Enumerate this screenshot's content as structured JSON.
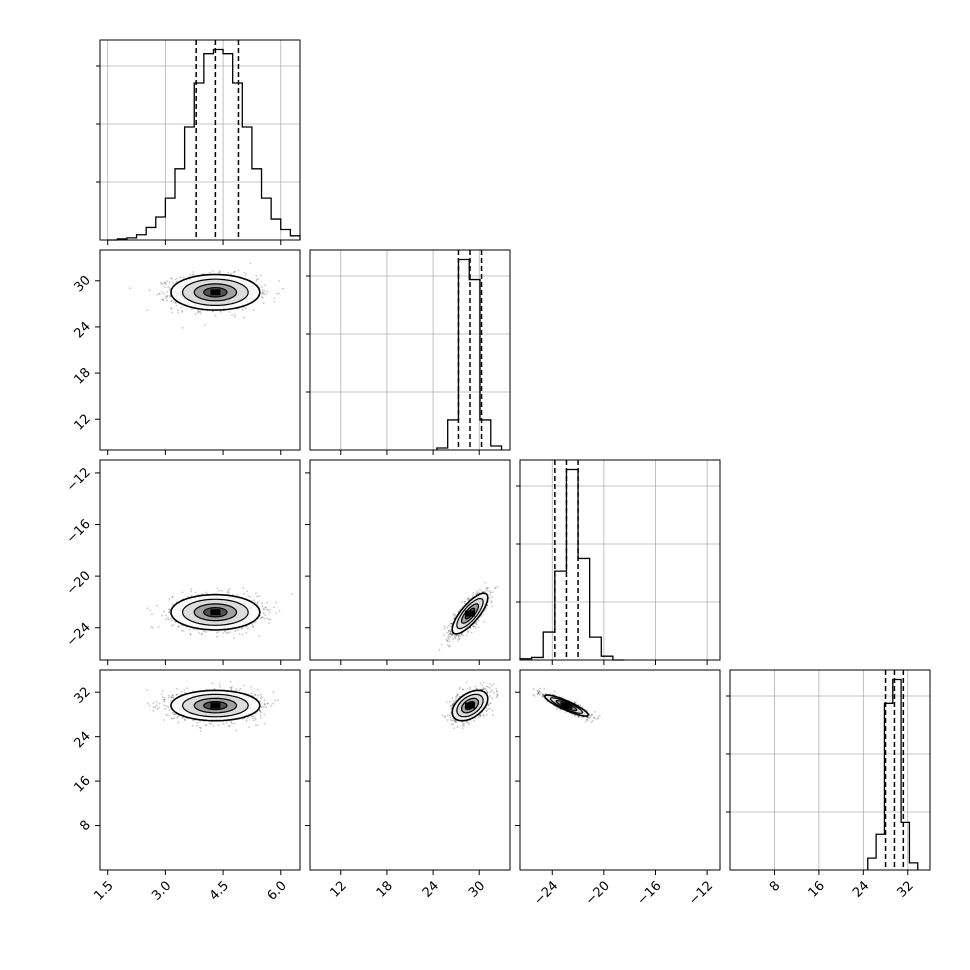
{
  "chart_data": {
    "type": "corner",
    "grid": true,
    "params": [
      {
        "range": [
          1.3,
          6.5
        ],
        "ticks": [
          "1.5",
          "3.0",
          "4.5",
          "6.0"
        ],
        "tick_values": [
          1.5,
          3.0,
          4.5,
          6.0
        ],
        "quantiles": [
          3.8,
          4.3,
          4.9
        ],
        "hist": {
          "edges_start": 1.5,
          "edge_step": 0.25,
          "counts": [
            0,
            1,
            2,
            5,
            12,
            22,
            40,
            68,
            108,
            150,
            178,
            182,
            178,
            150,
            108,
            68,
            40,
            20,
            10,
            4,
            1
          ]
        }
      },
      {
        "range": [
          8,
          34
        ],
        "ticks": [
          "12",
          "18",
          "24",
          "30"
        ],
        "tick_values": [
          12,
          18,
          24,
          30
        ],
        "quantiles": [
          27.3,
          28.8,
          30.3
        ],
        "hist": {
          "edges_start": 24.5,
          "edge_step": 1.4,
          "counts": [
            2,
            30,
            190,
            170,
            30,
            4
          ]
        }
      },
      {
        "range": [
          -26.5,
          -11
        ],
        "ticks": [
          "−24",
          "−20",
          "−16",
          "−12"
        ],
        "tick_values": [
          -24,
          -20,
          -16,
          -12
        ],
        "quantiles": [
          -23.8,
          -22.9,
          -22.0
        ],
        "hist": {
          "edges_start": -26.5,
          "edge_step": 0.9,
          "counts": [
            1,
            2,
            22,
            70,
            150,
            80,
            18,
            3,
            0
          ]
        }
      },
      {
        "range": [
          0,
          36
        ],
        "ticks": [
          "8",
          "16",
          "24",
          "32"
        ],
        "tick_values": [
          8,
          16,
          24,
          32
        ],
        "quantiles": [
          28.0,
          29.6,
          31.2
        ],
        "hist": {
          "edges_start": 24.8,
          "edge_step": 1.5,
          "counts": [
            10,
            30,
            140,
            160,
            40,
            6
          ]
        }
      }
    ],
    "pairs": [
      {
        "row": 1,
        "col": 0,
        "center": [
          4.3,
          28.5
        ],
        "sigma": [
          0.55,
          1.1
        ],
        "rho": 0
      },
      {
        "row": 2,
        "col": 0,
        "center": [
          4.3,
          -22.8
        ],
        "sigma": [
          0.55,
          0.65
        ],
        "rho": 0
      },
      {
        "row": 2,
        "col": 1,
        "center": [
          28.8,
          -22.9
        ],
        "sigma": [
          1.1,
          0.75
        ],
        "rho": 0.78
      },
      {
        "row": 3,
        "col": 0,
        "center": [
          4.3,
          29.6
        ],
        "sigma": [
          0.55,
          1.3
        ],
        "rho": 0
      },
      {
        "row": 3,
        "col": 1,
        "center": [
          28.8,
          29.6
        ],
        "sigma": [
          1.1,
          1.3
        ],
        "rho": 0.45
      },
      {
        "row": 3,
        "col": 2,
        "center": [
          -22.9,
          29.6
        ],
        "sigma": [
          0.8,
          0.9
        ],
        "rho": -0.88
      }
    ],
    "colors": {
      "line": "#000000",
      "grid": "#b0b0b0",
      "points": "#000000"
    }
  }
}
